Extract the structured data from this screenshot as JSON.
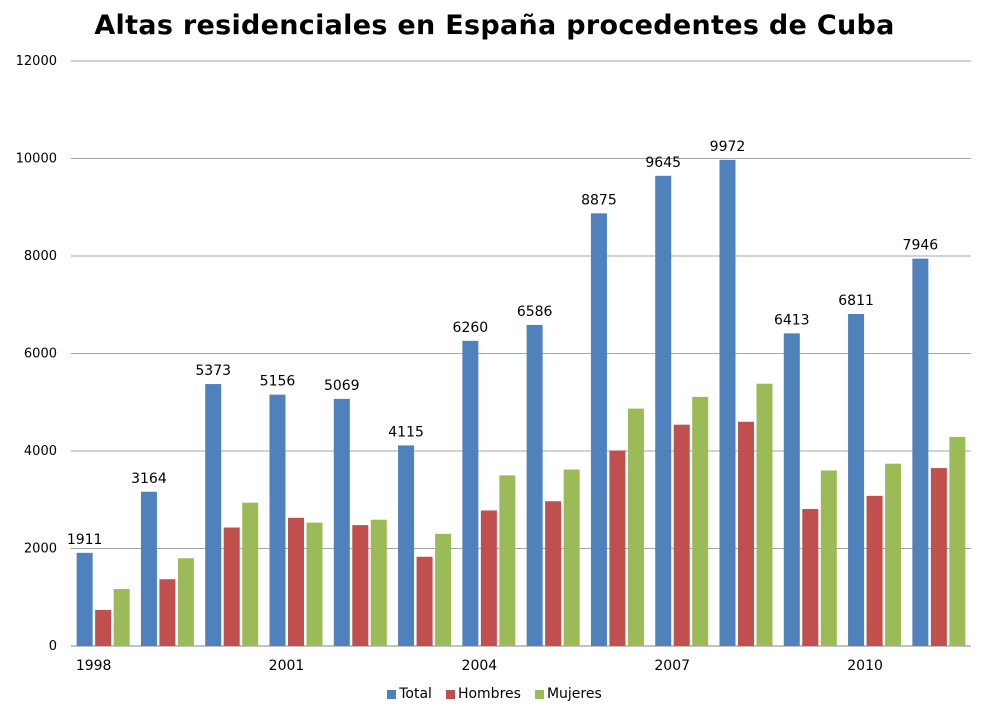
{
  "chart_data": {
    "type": "bar",
    "title": "Altas residenciales en España procedentes de Cuba",
    "xlabel": "",
    "ylabel": "",
    "ylim": [
      0,
      12000
    ],
    "yticks": [
      "0",
      "2000",
      "4000",
      "6000",
      "8000",
      "10000",
      "12000"
    ],
    "ytick_values": [
      0,
      2000,
      4000,
      6000,
      8000,
      10000,
      12000
    ],
    "categories": [
      "1998",
      "1999",
      "2000",
      "2001",
      "2002",
      "2003",
      "2004",
      "2005",
      "2006",
      "2007",
      "2008",
      "2009",
      "2010",
      "2011"
    ],
    "category_labels": [
      "1998",
      "",
      "",
      "2001",
      "",
      "",
      "2004",
      "",
      "",
      "2007",
      "",
      "",
      "2010",
      ""
    ],
    "grid": true,
    "legend_position": "bottom",
    "series": [
      {
        "name": "Total",
        "color": "#4F81BD",
        "values": [
          1911,
          3164,
          5373,
          5156,
          5069,
          4115,
          6260,
          6586,
          8875,
          9645,
          9972,
          6413,
          6811,
          7946
        ],
        "labels": [
          "1911",
          "3164",
          "5373",
          "5156",
          "5069",
          "4115",
          "6260",
          "6586",
          "8875",
          "9645",
          "9972",
          "6413",
          "6811",
          "7946"
        ]
      },
      {
        "name": "Hombres",
        "color": "#C0504D",
        "values": [
          740,
          1370,
          2430,
          2630,
          2480,
          1830,
          2780,
          2970,
          4010,
          4540,
          4600,
          2810,
          3080,
          3650
        ]
      },
      {
        "name": "Mujeres",
        "color": "#9BBB59",
        "values": [
          1170,
          1800,
          2940,
          2530,
          2590,
          2300,
          3500,
          3620,
          4870,
          5110,
          5380,
          3600,
          3740,
          4290
        ]
      }
    ]
  },
  "colors": {
    "grid": "#A6A6A6",
    "axis": "#868686"
  }
}
